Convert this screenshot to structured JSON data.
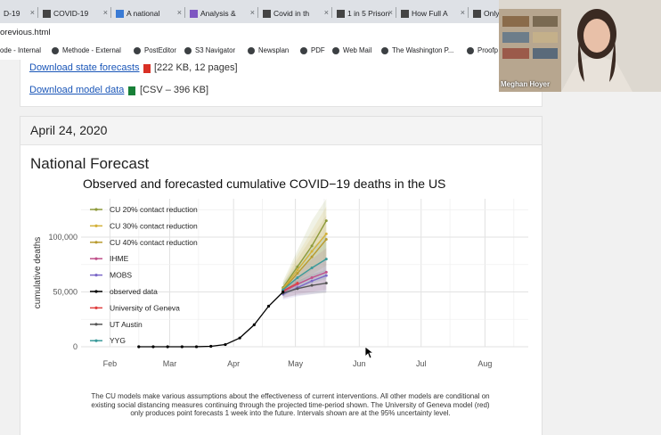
{
  "browser": {
    "tabs": [
      {
        "label": "D-19",
        "favicon": "tab-favicon",
        "color": "#c0392b"
      },
      {
        "label": "COVID-19",
        "favicon": "tab-favicon",
        "color": "#444444"
      },
      {
        "label": "A national",
        "favicon": "tab-favicon",
        "color": "#3a7bd5"
      },
      {
        "label": "Analysis &",
        "favicon": "tab-favicon",
        "color": "#7e57c2"
      },
      {
        "label": "Covid in th",
        "favicon": "tab-favicon",
        "color": "#444444"
      },
      {
        "label": "1 in 5 Prison",
        "favicon": "tab-favicon",
        "color": "#444444"
      },
      {
        "label": "How Full A",
        "favicon": "tab-favicon",
        "color": "#444444"
      },
      {
        "label": "Only",
        "favicon": "tab-favicon",
        "color": "#444444"
      }
    ],
    "address": "orevious.html",
    "bookmarks": [
      {
        "label": "ode - Internal"
      },
      {
        "label": "Methode - External"
      },
      {
        "label": "PostEditor"
      },
      {
        "label": "S3 Navigator"
      },
      {
        "label": "Newsplan"
      },
      {
        "label": "PDF"
      },
      {
        "label": "Web Mail"
      },
      {
        "label": "The Washington P..."
      },
      {
        "label": "Proofp"
      }
    ]
  },
  "downloads": {
    "state_link": "Download state forecasts",
    "state_meta": "[222 KB, 12 pages]",
    "model_link": "Download model data",
    "model_meta": "[CSV – 396 KB]"
  },
  "card": {
    "date": "April 24, 2020",
    "section_title": "National Forecast",
    "caption": "The CU models make various assumptions about the effectiveness of current interventions. All other models are conditional on existing social distancing measures continuing through the projected time-period shown. The University of Geneva model (red) only produces point forecasts 1 week into the future. Intervals shown are at the 95% uncertainty level."
  },
  "chart_data": {
    "type": "line",
    "title": "Observed and forecasted cumulative COVID−19 deaths in the US",
    "xlabel": "",
    "ylabel": "cumulative deaths",
    "x_ticks": [
      "Feb",
      "Mar",
      "Apr",
      "May",
      "Jun",
      "Jul",
      "Aug"
    ],
    "y_ticks": [
      0,
      50000,
      100000
    ],
    "y_tick_labels": [
      "0",
      "50,000",
      "100,000"
    ],
    "ylim": [
      0,
      135000
    ],
    "grid": true,
    "legend_position": "top-left",
    "observed": {
      "name": "observed data",
      "color": "#000000",
      "x": [
        "2020-02-15",
        "2020-02-22",
        "2020-02-29",
        "2020-03-07",
        "2020-03-14",
        "2020-03-21",
        "2020-03-28",
        "2020-04-04",
        "2020-04-11",
        "2020-04-18",
        "2020-04-25"
      ],
      "y": [
        0,
        0,
        0,
        0,
        50,
        400,
        2000,
        8000,
        20000,
        37000,
        50000
      ]
    },
    "series": [
      {
        "name": "CU 20% contact reduction",
        "color": "#8d9a3a",
        "x": [
          "2020-04-25",
          "2020-05-02",
          "2020-05-09",
          "2020-05-16"
        ],
        "y": [
          54000,
          73000,
          92000,
          115000
        ],
        "band": [
          [
            48000,
            60000
          ],
          [
            60000,
            88000
          ],
          [
            70000,
            115000
          ],
          [
            80000,
            135000
          ]
        ]
      },
      {
        "name": "CU 30% contact reduction",
        "color": "#d4b13a",
        "x": [
          "2020-04-25",
          "2020-05-02",
          "2020-05-09",
          "2020-05-16"
        ],
        "y": [
          53000,
          70000,
          87000,
          103000
        ],
        "band": [
          [
            47000,
            58000
          ],
          [
            58000,
            84000
          ],
          [
            66000,
            106000
          ],
          [
            74000,
            128000
          ]
        ]
      },
      {
        "name": "CU 40% contact reduction",
        "color": "#b89a2e",
        "x": [
          "2020-04-25",
          "2020-05-02",
          "2020-05-09",
          "2020-05-16"
        ],
        "y": [
          52000,
          67000,
          82000,
          98000
        ],
        "band": [
          [
            46000,
            57000
          ],
          [
            56000,
            80000
          ],
          [
            63000,
            100000
          ],
          [
            70000,
            120000
          ]
        ]
      },
      {
        "name": "IHME",
        "color": "#c0508a",
        "x": [
          "2020-04-25",
          "2020-05-02",
          "2020-05-09",
          "2020-05-16"
        ],
        "y": [
          50000,
          57000,
          63000,
          68000
        ],
        "band": [
          [
            44000,
            55000
          ],
          [
            48000,
            68000
          ],
          [
            50000,
            80000
          ],
          [
            52000,
            90000
          ]
        ]
      },
      {
        "name": "MOBS",
        "color": "#7b68c8",
        "x": [
          "2020-04-25",
          "2020-05-02",
          "2020-05-09",
          "2020-05-16"
        ],
        "y": [
          48000,
          54000,
          60000,
          65000
        ],
        "band": [
          [
            43000,
            53000
          ],
          [
            46000,
            63000
          ],
          [
            48000,
            72000
          ],
          [
            50000,
            80000
          ]
        ]
      },
      {
        "name": "observed data",
        "color": "#000000",
        "x": [],
        "y": []
      },
      {
        "name": "University of Geneva",
        "color": "#e04040",
        "x": [
          "2020-04-25",
          "2020-05-02"
        ],
        "y": [
          51000,
          58000
        ],
        "band": []
      },
      {
        "name": "UT Austin",
        "color": "#555555",
        "x": [
          "2020-04-25",
          "2020-05-02",
          "2020-05-09",
          "2020-05-16"
        ],
        "y": [
          49000,
          53000,
          56000,
          58000
        ],
        "band": [
          [
            45000,
            52000
          ],
          [
            47000,
            60000
          ],
          [
            48000,
            66000
          ],
          [
            49000,
            70000
          ]
        ]
      },
      {
        "name": "YYG",
        "color": "#3a9a9a",
        "x": [
          "2020-04-25",
          "2020-05-02",
          "2020-05-09",
          "2020-05-16"
        ],
        "y": [
          52000,
          63000,
          72000,
          80000
        ],
        "band": [
          [
            46000,
            58000
          ],
          [
            53000,
            75000
          ],
          [
            58000,
            90000
          ],
          [
            62000,
            102000
          ]
        ]
      }
    ]
  },
  "webcam": {
    "name": "Meghan Hoyer"
  }
}
